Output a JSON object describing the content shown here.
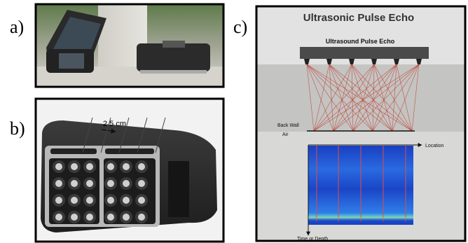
{
  "panels": {
    "a": {
      "label": "a)"
    },
    "b": {
      "label": "b)",
      "scale": "2,5 cm"
    },
    "c": {
      "label": "c)",
      "title": "Ultrasonic Pulse Echo",
      "array_label": "Ultrasound Pulse Echo",
      "back_wall": "Back Wall",
      "air": "Air",
      "x_axis": "Location",
      "y_axis": "Time or Depth"
    }
  }
}
